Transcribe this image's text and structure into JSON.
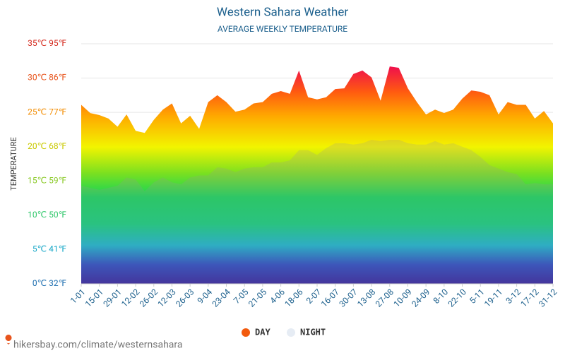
{
  "chart_data": {
    "type": "area",
    "title": "Western Sahara Weather",
    "subtitle": "AVERAGE WEEKLY TEMPERATURE",
    "y_label": "TEMPERATURE",
    "footer": "hikersbay.com/climate/westernsahara",
    "categories": [
      "1-01",
      null,
      "15-01",
      null,
      "29-01",
      null,
      "12-02",
      null,
      "26-02",
      null,
      "12-03",
      null,
      "26-03",
      null,
      "9-04",
      null,
      "23-04",
      null,
      "7-05",
      null,
      "21-05",
      null,
      "4-06",
      null,
      "18-06",
      null,
      "2-07",
      null,
      "16-07",
      null,
      "30-07",
      null,
      "13-08",
      null,
      "27-08",
      null,
      "10-09",
      null,
      "24-09",
      null,
      "8-10",
      null,
      "22-10",
      null,
      "5-11",
      null,
      "19-11",
      null,
      "3-12",
      null,
      "17-12",
      null,
      "31-12"
    ],
    "series": [
      {
        "name": "DAY",
        "color": "#f25a0d",
        "values": [
          26.1,
          24.9,
          24.6,
          24.1,
          22.9,
          24.7,
          22.3,
          22.0,
          23.9,
          25.4,
          26.3,
          23.4,
          24.5,
          22.6,
          26.5,
          27.5,
          26.5,
          25.1,
          25.4,
          26.3,
          26.5,
          27.7,
          28.1,
          27.7,
          31.1,
          27.2,
          26.9,
          27.2,
          28.4,
          28.5,
          30.6,
          31.1,
          30.1,
          26.7,
          31.7,
          31.5,
          28.5,
          26.5,
          24.7,
          25.4,
          24.9,
          25.4,
          27.0,
          28.2,
          28.0,
          27.5,
          24.7,
          26.5,
          26.1,
          26.1,
          24.1,
          25.2,
          23.4
        ]
      },
      {
        "name": "NIGHT",
        "color": "#e6ecf4",
        "values": [
          14.3,
          14.0,
          13.7,
          14.0,
          14.3,
          15.5,
          15.2,
          13.5,
          14.8,
          15.5,
          14.8,
          14.5,
          15.5,
          15.8,
          15.8,
          17.0,
          16.8,
          16.3,
          16.8,
          17.0,
          17.0,
          17.7,
          17.7,
          18.0,
          19.5,
          19.5,
          18.8,
          19.8,
          20.5,
          20.5,
          20.3,
          20.5,
          21.0,
          20.8,
          21.0,
          21.0,
          20.5,
          20.3,
          20.3,
          20.8,
          20.3,
          20.5,
          20.0,
          19.5,
          18.5,
          17.3,
          16.8,
          16.3,
          16.0,
          14.5,
          14.7,
          14.5,
          14.5
        ]
      }
    ],
    "ylim": [
      0,
      35
    ],
    "yticks": [
      {
        "value": 0,
        "label": "0℃ 32℉"
      },
      {
        "value": 5,
        "label": "5℃ 41℉"
      },
      {
        "value": 10,
        "label": "10℃ 50℉"
      },
      {
        "value": 15,
        "label": "15℃ 59℉"
      },
      {
        "value": 20,
        "label": "20℃ 68℉"
      },
      {
        "value": 25,
        "label": "25℃ 77℉"
      },
      {
        "value": 30,
        "label": "30℃ 86℉"
      },
      {
        "value": 35,
        "label": "35℃ 95℉"
      }
    ],
    "grid": true
  }
}
